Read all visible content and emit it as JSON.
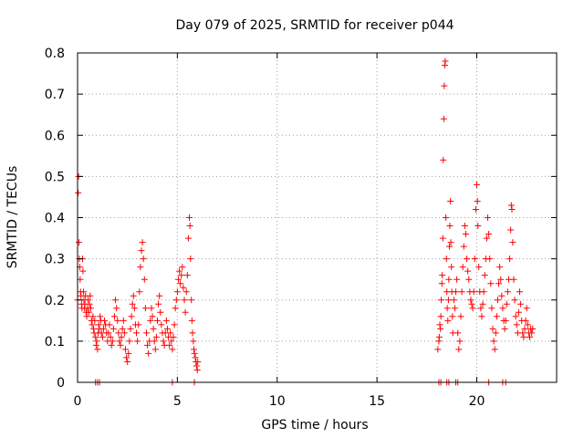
{
  "chart_data": {
    "type": "scatter",
    "title": "Day 079 of 2025, SRMTID for receiver p044",
    "xlabel": "GPS time / hours",
    "ylabel": "SRMTID / TECUs",
    "xlim": [
      0,
      24
    ],
    "ylim": [
      0,
      0.8
    ],
    "xticks": [
      0,
      5,
      10,
      15,
      20
    ],
    "yticks": [
      0,
      0.1,
      0.2,
      0.3,
      0.4,
      0.5,
      0.6,
      0.7,
      0.8
    ],
    "xtick_labels": [
      "0",
      "5",
      "10",
      "15",
      "20"
    ],
    "ytick_labels": [
      "0",
      "0.1",
      "0.2",
      "0.3",
      "0.4",
      "0.5",
      "0.6",
      "0.7",
      "0.8"
    ],
    "grid": true,
    "marker": "plus",
    "series": [
      {
        "name": "SRMTID",
        "color": "#ff0000",
        "points": [
          [
            0.0,
            0.2
          ],
          [
            0.03,
            0.46
          ],
          [
            0.05,
            0.5
          ],
          [
            0.07,
            0.34
          ],
          [
            0.09,
            0.3
          ],
          [
            0.11,
            0.28
          ],
          [
            0.13,
            0.25
          ],
          [
            0.15,
            0.22
          ],
          [
            0.17,
            0.21
          ],
          [
            0.2,
            0.19
          ],
          [
            0.22,
            0.18
          ],
          [
            0.25,
            0.3
          ],
          [
            0.27,
            0.27
          ],
          [
            0.3,
            0.22
          ],
          [
            0.32,
            0.2
          ],
          [
            0.35,
            0.18
          ],
          [
            0.37,
            0.19
          ],
          [
            0.4,
            0.21
          ],
          [
            0.43,
            0.17
          ],
          [
            0.46,
            0.16
          ],
          [
            0.5,
            0.18
          ],
          [
            0.53,
            0.2
          ],
          [
            0.56,
            0.17
          ],
          [
            0.6,
            0.19
          ],
          [
            0.63,
            0.21
          ],
          [
            0.66,
            0.18
          ],
          [
            0.7,
            0.15
          ],
          [
            0.73,
            0.14
          ],
          [
            0.77,
            0.16
          ],
          [
            0.8,
            0.13
          ],
          [
            0.83,
            0.12
          ],
          [
            0.86,
            0.15
          ],
          [
            0.9,
            0.11
          ],
          [
            0.93,
            0.09
          ],
          [
            0.96,
            0.1
          ],
          [
            1.0,
            0.08
          ],
          [
            1.03,
            0.12
          ],
          [
            1.06,
            0.14
          ],
          [
            1.1,
            0.13
          ],
          [
            1.13,
            0.16
          ],
          [
            1.16,
            0.15
          ],
          [
            1.2,
            0.12
          ],
          [
            1.25,
            0.11
          ],
          [
            1.3,
            0.13
          ],
          [
            1.35,
            0.15
          ],
          [
            1.4,
            0.14
          ],
          [
            1.45,
            0.12
          ],
          [
            1.5,
            0.1
          ],
          [
            1.55,
            0.12
          ],
          [
            1.6,
            0.14
          ],
          [
            1.65,
            0.11
          ],
          [
            1.7,
            0.09
          ],
          [
            1.75,
            0.1
          ],
          [
            1.8,
            0.13
          ],
          [
            1.85,
            0.16
          ],
          [
            1.9,
            0.2
          ],
          [
            1.95,
            0.18
          ],
          [
            2.0,
            0.15
          ],
          [
            2.05,
            0.12
          ],
          [
            2.1,
            0.1
          ],
          [
            2.15,
            0.09
          ],
          [
            2.2,
            0.11
          ],
          [
            2.25,
            0.13
          ],
          [
            2.3,
            0.15
          ],
          [
            2.35,
            0.12
          ],
          [
            2.4,
            0.08
          ],
          [
            2.45,
            0.06
          ],
          [
            2.5,
            0.05
          ],
          [
            2.55,
            0.07
          ],
          [
            2.6,
            0.1
          ],
          [
            2.65,
            0.13
          ],
          [
            2.7,
            0.16
          ],
          [
            2.75,
            0.19
          ],
          [
            2.8,
            0.21
          ],
          [
            2.85,
            0.18
          ],
          [
            2.9,
            0.14
          ],
          [
            2.95,
            0.12
          ],
          [
            3.0,
            0.1
          ],
          [
            3.05,
            0.14
          ],
          [
            3.1,
            0.22
          ],
          [
            3.15,
            0.28
          ],
          [
            3.2,
            0.32
          ],
          [
            3.25,
            0.34
          ],
          [
            3.3,
            0.3
          ],
          [
            3.35,
            0.25
          ],
          [
            3.4,
            0.18
          ],
          [
            3.45,
            0.12
          ],
          [
            3.5,
            0.09
          ],
          [
            3.55,
            0.07
          ],
          [
            3.6,
            0.1
          ],
          [
            3.65,
            0.15
          ],
          [
            3.7,
            0.18
          ],
          [
            3.75,
            0.16
          ],
          [
            3.8,
            0.13
          ],
          [
            3.85,
            0.1
          ],
          [
            3.9,
            0.08
          ],
          [
            3.95,
            0.11
          ],
          [
            4.0,
            0.15
          ],
          [
            4.05,
            0.19
          ],
          [
            4.1,
            0.21
          ],
          [
            4.15,
            0.17
          ],
          [
            4.2,
            0.14
          ],
          [
            4.25,
            0.12
          ],
          [
            4.3,
            0.1
          ],
          [
            4.35,
            0.09
          ],
          [
            4.4,
            0.12
          ],
          [
            4.45,
            0.15
          ],
          [
            4.5,
            0.13
          ],
          [
            4.55,
            0.11
          ],
          [
            4.6,
            0.09
          ],
          [
            4.65,
            0.12
          ],
          [
            4.7,
            0.1
          ],
          [
            4.75,
            0.08
          ],
          [
            4.8,
            0.11
          ],
          [
            4.85,
            0.14
          ],
          [
            4.9,
            0.18
          ],
          [
            4.95,
            0.2
          ],
          [
            5.0,
            0.22
          ],
          [
            5.05,
            0.25
          ],
          [
            5.1,
            0.27
          ],
          [
            5.15,
            0.24
          ],
          [
            5.2,
            0.26
          ],
          [
            5.25,
            0.28
          ],
          [
            5.3,
            0.23
          ],
          [
            5.35,
            0.2
          ],
          [
            5.4,
            0.17
          ],
          [
            5.45,
            0.22
          ],
          [
            5.5,
            0.26
          ],
          [
            5.55,
            0.35
          ],
          [
            5.6,
            0.4
          ],
          [
            5.63,
            0.38
          ],
          [
            5.66,
            0.3
          ],
          [
            5.7,
            0.2
          ],
          [
            5.73,
            0.15
          ],
          [
            5.76,
            0.12
          ],
          [
            5.8,
            0.1
          ],
          [
            5.83,
            0.08
          ],
          [
            5.86,
            0.07
          ],
          [
            5.9,
            0.06
          ],
          [
            5.93,
            0.05
          ],
          [
            5.96,
            0.04
          ],
          [
            6.0,
            0.03
          ],
          [
            6.02,
            0.05
          ],
          [
            0.9,
            0.0
          ],
          [
            1.0,
            0.0
          ],
          [
            1.1,
            0.0
          ],
          [
            4.75,
            0.0
          ],
          [
            5.85,
            0.0
          ],
          [
            18.05,
            0.08
          ],
          [
            18.1,
            0.1
          ],
          [
            18.12,
            0.11
          ],
          [
            18.15,
            0.14
          ],
          [
            18.18,
            0.13
          ],
          [
            18.2,
            0.16
          ],
          [
            18.22,
            0.2
          ],
          [
            18.25,
            0.24
          ],
          [
            18.27,
            0.26
          ],
          [
            18.3,
            0.35
          ],
          [
            18.32,
            0.54
          ],
          [
            18.35,
            0.64
          ],
          [
            18.37,
            0.72
          ],
          [
            18.4,
            0.77
          ],
          [
            18.42,
            0.78
          ],
          [
            18.45,
            0.4
          ],
          [
            18.48,
            0.3
          ],
          [
            18.5,
            0.22
          ],
          [
            18.52,
            0.18
          ],
          [
            18.55,
            0.15
          ],
          [
            18.58,
            0.2
          ],
          [
            18.6,
            0.25
          ],
          [
            18.63,
            0.33
          ],
          [
            18.65,
            0.38
          ],
          [
            18.68,
            0.44
          ],
          [
            18.7,
            0.34
          ],
          [
            18.73,
            0.28
          ],
          [
            18.75,
            0.22
          ],
          [
            18.78,
            0.16
          ],
          [
            18.8,
            0.12
          ],
          [
            18.85,
            0.2
          ],
          [
            18.9,
            0.18
          ],
          [
            18.95,
            0.22
          ],
          [
            19.0,
            0.25
          ],
          [
            19.05,
            0.12
          ],
          [
            19.1,
            0.08
          ],
          [
            19.15,
            0.1
          ],
          [
            19.2,
            0.16
          ],
          [
            19.25,
            0.22
          ],
          [
            19.3,
            0.28
          ],
          [
            19.35,
            0.33
          ],
          [
            19.4,
            0.38
          ],
          [
            19.45,
            0.36
          ],
          [
            19.5,
            0.3
          ],
          [
            19.55,
            0.27
          ],
          [
            19.6,
            0.25
          ],
          [
            19.65,
            0.22
          ],
          [
            19.7,
            0.2
          ],
          [
            19.75,
            0.19
          ],
          [
            19.8,
            0.18
          ],
          [
            19.85,
            0.22
          ],
          [
            19.9,
            0.3
          ],
          [
            19.95,
            0.42
          ],
          [
            20.0,
            0.48
          ],
          [
            20.03,
            0.44
          ],
          [
            20.06,
            0.38
          ],
          [
            20.1,
            0.28
          ],
          [
            20.15,
            0.22
          ],
          [
            20.2,
            0.18
          ],
          [
            20.25,
            0.16
          ],
          [
            20.3,
            0.19
          ],
          [
            20.35,
            0.22
          ],
          [
            20.4,
            0.26
          ],
          [
            20.45,
            0.3
          ],
          [
            20.5,
            0.35
          ],
          [
            20.55,
            0.4
          ],
          [
            20.6,
            0.36
          ],
          [
            20.65,
            0.3
          ],
          [
            20.7,
            0.24
          ],
          [
            20.75,
            0.18
          ],
          [
            20.8,
            0.13
          ],
          [
            20.85,
            0.1
          ],
          [
            20.9,
            0.08
          ],
          [
            20.95,
            0.12
          ],
          [
            21.0,
            0.16
          ],
          [
            21.05,
            0.2
          ],
          [
            21.1,
            0.24
          ],
          [
            21.15,
            0.28
          ],
          [
            21.2,
            0.25
          ],
          [
            21.25,
            0.21
          ],
          [
            21.3,
            0.18
          ],
          [
            21.35,
            0.15
          ],
          [
            21.4,
            0.13
          ],
          [
            21.45,
            0.15
          ],
          [
            21.5,
            0.19
          ],
          [
            21.55,
            0.22
          ],
          [
            21.6,
            0.25
          ],
          [
            21.65,
            0.3
          ],
          [
            21.7,
            0.37
          ],
          [
            21.73,
            0.43
          ],
          [
            21.76,
            0.42
          ],
          [
            21.8,
            0.34
          ],
          [
            21.85,
            0.25
          ],
          [
            21.9,
            0.2
          ],
          [
            21.95,
            0.16
          ],
          [
            22.0,
            0.14
          ],
          [
            22.05,
            0.12
          ],
          [
            22.1,
            0.17
          ],
          [
            22.15,
            0.22
          ],
          [
            22.2,
            0.19
          ],
          [
            22.25,
            0.15
          ],
          [
            22.3,
            0.12
          ],
          [
            22.35,
            0.11
          ],
          [
            22.4,
            0.13
          ],
          [
            22.45,
            0.15
          ],
          [
            22.5,
            0.18
          ],
          [
            22.55,
            0.14
          ],
          [
            22.6,
            0.12
          ],
          [
            22.65,
            0.11
          ],
          [
            22.7,
            0.13
          ],
          [
            22.75,
            0.12
          ],
          [
            22.8,
            0.13
          ],
          [
            18.1,
            0.0
          ],
          [
            18.2,
            0.0
          ],
          [
            18.5,
            0.0
          ],
          [
            18.6,
            0.0
          ],
          [
            18.95,
            0.0
          ],
          [
            19.05,
            0.0
          ],
          [
            20.6,
            0.0
          ],
          [
            21.3,
            0.0
          ],
          [
            21.45,
            0.0
          ]
        ]
      }
    ]
  }
}
